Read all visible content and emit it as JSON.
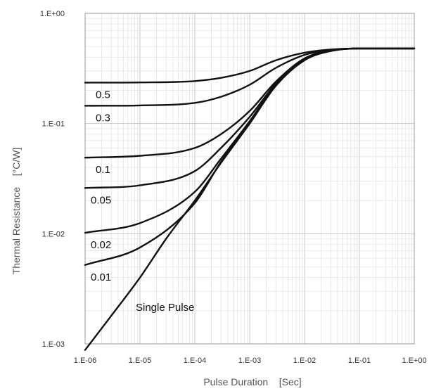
{
  "chart_data": {
    "type": "line",
    "title": "",
    "xlabel": "Pulse Duration    [Sec]",
    "ylabel": "Thermal Resistance    [°C/W]",
    "xscale": "log",
    "yscale": "log",
    "xlim": [
      1e-06,
      1
    ],
    "ylim": [
      0.001,
      1
    ],
    "grid": true,
    "x_tick_labels": [
      "1.E-06",
      "1.E-05",
      "1.E-04",
      "1.E-03",
      "1.E-02",
      "1.E-01",
      "1.E+00"
    ],
    "y_tick_labels": [
      "1.E-03",
      "1.E-02",
      "1.E-01",
      "1.E+00"
    ],
    "series": [
      {
        "name": "0.5",
        "x": [
          1e-06,
          1e-05,
          0.0001,
          0.0003,
          0.001,
          0.003,
          0.01,
          0.03,
          0.1,
          1
        ],
        "y": [
          0.235,
          0.236,
          0.243,
          0.26,
          0.3,
          0.375,
          0.44,
          0.47,
          0.48,
          0.48
        ]
      },
      {
        "name": "0.3",
        "x": [
          1e-06,
          1e-05,
          0.0001,
          0.0003,
          0.001,
          0.003,
          0.01,
          0.03,
          0.1,
          1
        ],
        "y": [
          0.145,
          0.146,
          0.154,
          0.175,
          0.225,
          0.32,
          0.42,
          0.465,
          0.48,
          0.48
        ]
      },
      {
        "name": "0.1",
        "x": [
          1e-06,
          1e-05,
          0.0001,
          0.0003,
          0.001,
          0.003,
          0.01,
          0.03,
          0.1,
          1
        ],
        "y": [
          0.049,
          0.051,
          0.06,
          0.08,
          0.13,
          0.24,
          0.39,
          0.46,
          0.48,
          0.48
        ]
      },
      {
        "name": "0.05",
        "x": [
          1e-06,
          1e-05,
          0.0001,
          0.0003,
          0.001,
          0.003,
          0.01,
          0.03,
          0.1,
          1
        ],
        "y": [
          0.026,
          0.0275,
          0.037,
          0.06,
          0.115,
          0.23,
          0.385,
          0.458,
          0.48,
          0.48
        ]
      },
      {
        "name": "0.02",
        "x": [
          1e-06,
          1e-05,
          0.0001,
          0.0003,
          0.001,
          0.003,
          0.01,
          0.03,
          0.1,
          1
        ],
        "y": [
          0.0102,
          0.0125,
          0.024,
          0.048,
          0.105,
          0.225,
          0.38,
          0.457,
          0.48,
          0.48
        ]
      },
      {
        "name": "0.01",
        "x": [
          1e-06,
          1e-05,
          0.0001,
          0.0003,
          0.001,
          0.003,
          0.01,
          0.03,
          0.1,
          1
        ],
        "y": [
          0.0052,
          0.0075,
          0.019,
          0.045,
          0.102,
          0.222,
          0.378,
          0.456,
          0.48,
          0.48
        ]
      },
      {
        "name": "Single Pulse",
        "x": [
          1e-06,
          3e-06,
          1e-05,
          3e-05,
          0.0001,
          0.0003,
          0.001,
          0.003,
          0.01,
          0.03,
          0.1,
          1
        ],
        "y": [
          0.00088,
          0.0018,
          0.004,
          0.009,
          0.02,
          0.044,
          0.1,
          0.22,
          0.375,
          0.455,
          0.48,
          0.48
        ]
      }
    ]
  }
}
